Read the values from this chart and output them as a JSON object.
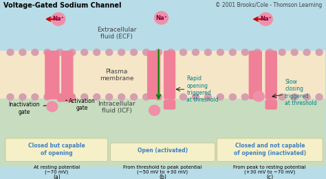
{
  "title": "Voltage-Gated Sodium Channel",
  "copyright": "© 2001 Brooks/Cole - Thomson Learning",
  "bg_top": "#b8dce8",
  "bg_membrane": "#f5e6c8",
  "bg_bottom": "#c8dcc0",
  "membrane_color": "#f0c8b0",
  "channel_color": "#f08098",
  "na_circle_color": "#f090a8",
  "na_text": "Na⁺",
  "ecf_label": "Extracellular\nfluid (ECF)",
  "plasma_label": "Plasma\nmembrane",
  "icf_label": "Intracellular\nfluid (ICF)",
  "label_a_box": "Closed but capable\nof opening",
  "label_a_sub": "At resting potential\n(−70 mV)",
  "label_a_letter": "(a)",
  "label_b_box": "Open (activated)",
  "label_b_sub": "From threshold to peak potential\n(−50 mV to +30 mV)",
  "label_b_letter": "(b)",
  "label_c_box": "Closed and not capable\nof opening (inactivated)",
  "label_c_sub": "From peak to resting potential\n(+30 mV to −70 mV)",
  "label_c_letter": "(c)",
  "inact_gate_label": "Inactivation\ngate",
  "act_gate_label": "Activation\ngate",
  "rapid_label": "Rapid\nopening\ntriggered\nat threshold",
  "slow_label": "Slow\nclosing\ntriggered\nat threshold",
  "box_color": "#f5f0c8",
  "blue_text": "#4080c0",
  "teal_text": "#008080",
  "arrow_red": "#cc0000",
  "arrow_green": "#008000"
}
